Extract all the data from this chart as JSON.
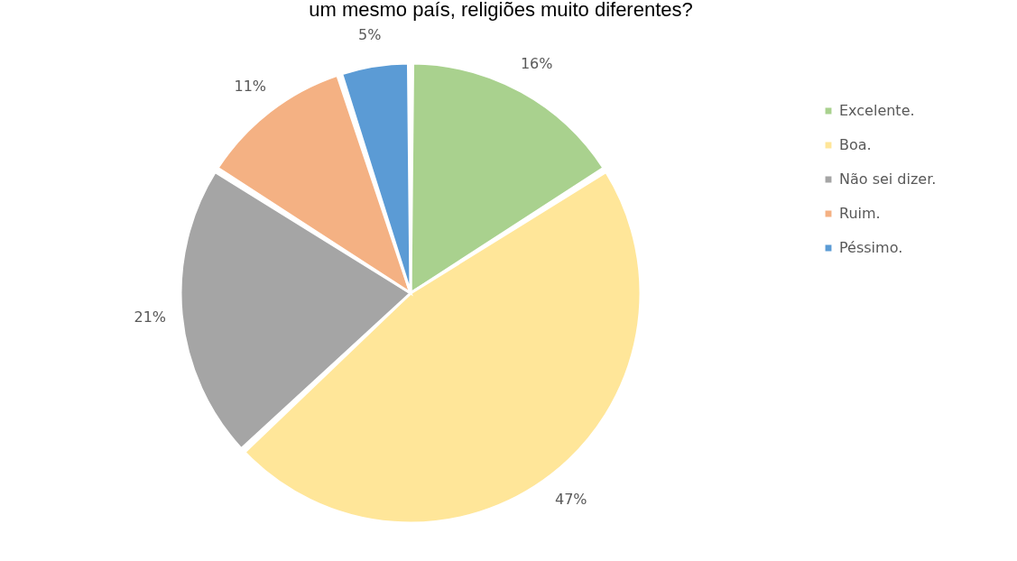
{
  "chart_data": {
    "type": "pie",
    "title": "um mesmo país, religiões muito diferentes?",
    "categories": [
      "Excelente.",
      "Boa.",
      "Não sei dizer.",
      "Ruim.",
      "Péssimo."
    ],
    "values": [
      16,
      47,
      21,
      11,
      5
    ],
    "value_labels": [
      "16%",
      "47%",
      "21%",
      "11%",
      "5%"
    ],
    "colors": [
      "#a9d18e",
      "#ffe699",
      "#a5a5a5",
      "#f4b183",
      "#5b9bd5"
    ],
    "legend": "right"
  }
}
